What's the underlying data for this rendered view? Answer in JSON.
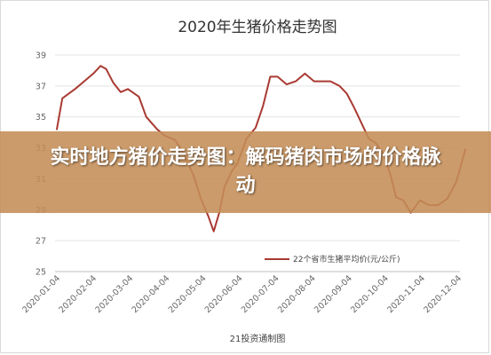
{
  "overlay": {
    "headline": "实时地方猪价走势图：解码猪肉市场的价格脉动",
    "background": "#c48d56"
  },
  "footer": {
    "source": "21投资通制图"
  },
  "chart_data": {
    "type": "line",
    "title": "2020年生猪价格走势图",
    "xlabel": "",
    "ylabel": "",
    "ylim": [
      25,
      39
    ],
    "yticks": [
      25,
      27,
      29,
      31,
      33,
      35,
      37,
      39
    ],
    "categories": [
      "2020-01-04",
      "2020-02-04",
      "2020-03-04",
      "2020-04-04",
      "2020-05-04",
      "2020-06-04",
      "2020-07-04",
      "2020-08-04",
      "2020-09-04",
      "2020-10-04",
      "2020-11-04",
      "2020-12-04"
    ],
    "grid": true,
    "legend_position": "bottom-right",
    "series": [
      {
        "name": "22个省市生猪平均价(元/公斤)",
        "color": "#a93a32",
        "x": [
          0,
          0.15,
          0.5,
          0.75,
          1.0,
          1.2,
          1.35,
          1.55,
          1.75,
          1.95,
          2.25,
          2.45,
          2.75,
          2.95,
          3.25,
          3.5,
          3.75,
          3.95,
          4.15,
          4.3,
          4.45,
          4.6,
          4.8,
          4.95,
          5.2,
          5.45,
          5.65,
          5.85,
          6.05,
          6.3,
          6.55,
          6.8,
          7.05,
          7.25,
          7.5,
          7.75,
          7.95,
          8.15,
          8.35,
          8.55,
          8.75,
          8.95,
          9.15,
          9.3,
          9.5,
          9.7,
          9.95,
          10.2,
          10.45,
          10.7,
          10.95,
          11.2
        ],
        "values": [
          34.2,
          36.2,
          36.8,
          37.3,
          37.8,
          38.3,
          38.1,
          37.2,
          36.6,
          36.8,
          36.3,
          35.0,
          34.2,
          33.8,
          33.5,
          32.5,
          31.2,
          29.7,
          28.6,
          27.6,
          28.8,
          30.5,
          31.5,
          32.0,
          33.6,
          34.3,
          35.7,
          37.6,
          37.6,
          37.1,
          37.3,
          37.8,
          37.3,
          37.3,
          37.3,
          37.0,
          36.5,
          35.6,
          34.6,
          33.6,
          33.3,
          32.6,
          31.2,
          29.8,
          29.6,
          28.8,
          29.6,
          29.3,
          29.3,
          29.7,
          30.8,
          32.9
        ]
      }
    ]
  }
}
